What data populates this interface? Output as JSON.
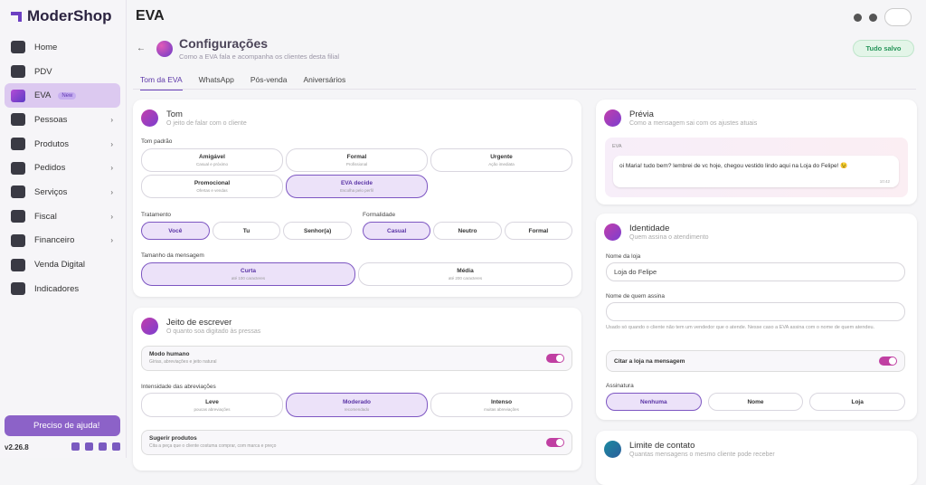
{
  "sidebar": {
    "logo": "ModerShop",
    "nav": [
      {
        "label": "Home"
      },
      {
        "label": "PDV"
      },
      {
        "label": "EVA",
        "badge": "New",
        "active": true
      },
      {
        "label": "Pessoas",
        "expandable": true
      },
      {
        "label": "Produtos",
        "expandable": true
      },
      {
        "label": "Pedidos",
        "expandable": true
      },
      {
        "label": "Serviços",
        "expandable": true
      },
      {
        "label": "Fiscal",
        "expandable": true
      },
      {
        "label": "Financeiro",
        "expandable": true
      },
      {
        "label": "Venda Digital"
      },
      {
        "label": "Indicadores"
      }
    ],
    "help": "Preciso de ajuda!",
    "version": "v2.26.8"
  },
  "topbar": {
    "title": "EVA"
  },
  "header": {
    "title": "Configurações",
    "subtitle": "Como a EVA fala e acompanha os clientes desta filial",
    "status": "Tudo salvo"
  },
  "tabs": [
    {
      "label": "Tom da EVA",
      "active": true
    },
    {
      "label": "WhatsApp"
    },
    {
      "label": "Pós-venda"
    },
    {
      "label": "Aniversários"
    }
  ],
  "tom": {
    "title": "Tom",
    "subtitle": "O jeito de falar com o cliente",
    "tone_label": "Tom padrão",
    "tones": [
      {
        "label": "Amigável",
        "hint": "Casual e próximo"
      },
      {
        "label": "Formal",
        "hint": "Profissional"
      },
      {
        "label": "Urgente",
        "hint": "Ação imediata"
      },
      {
        "label": "Promocional",
        "hint": "Ofertas e vendas"
      },
      {
        "label": "EVA decide",
        "hint": "Escolha pelo perfil",
        "selected": true
      }
    ],
    "treatment_label": "Tratamento",
    "treatments": [
      {
        "label": "Você",
        "selected": true
      },
      {
        "label": "Tu"
      },
      {
        "label": "Senhor(a)"
      }
    ],
    "formality_label": "Formalidade",
    "formalities": [
      {
        "label": "Casual",
        "selected": true
      },
      {
        "label": "Neutro"
      },
      {
        "label": "Formal"
      }
    ],
    "size_label": "Tamanho da mensagem",
    "sizes": [
      {
        "label": "Curta",
        "hint": "até 100 caracteres",
        "selected": true
      },
      {
        "label": "Média",
        "hint": "até 200 caracteres"
      }
    ]
  },
  "writing": {
    "title": "Jeito de escrever",
    "subtitle": "O quanto soa digitado às pressas",
    "human_mode": {
      "label": "Modo humano",
      "hint": "Gírias, abreviações e jeito natural",
      "on": true
    },
    "intensity_label": "Intensidade das abreviações",
    "intensities": [
      {
        "label": "Leve",
        "hint": "poucas abreviações"
      },
      {
        "label": "Moderado",
        "hint": "recomendado",
        "selected": true
      },
      {
        "label": "Intenso",
        "hint": "muitas abreviações"
      }
    ],
    "suggest": {
      "label": "Sugerir produtos",
      "hint": "Cita a peça que o cliente costuma comprar, com marca e preço",
      "on": true
    }
  },
  "preview": {
    "title": "Prévia",
    "subtitle": "Como a mensagem sai com os ajustes atuais",
    "sender": "EVA",
    "message": "oi Maria! tudo bem? lembrei de vc hoje, chegou vestido lindo aqui na Loja do Felipe! 😉",
    "time": "10:42"
  },
  "identity": {
    "title": "Identidade",
    "subtitle": "Quem assina o atendimento",
    "store_label": "Nome da loja",
    "store_value": "Loja do Felipe",
    "signer_label": "Nome de quem assina",
    "signer_help": "Usado só quando o cliente não tem um vendedor que o atende. Nesse caso a EVA assina com o nome de quem atendeu.",
    "cite_store": {
      "label": "Citar a loja na mensagem",
      "on": true
    },
    "signature_label": "Assinatura",
    "signatures": [
      {
        "label": "Nenhuma",
        "selected": true
      },
      {
        "label": "Nome"
      },
      {
        "label": "Loja"
      }
    ]
  },
  "limit": {
    "title": "Limite de contato",
    "subtitle": "Quantas mensagens o mesmo cliente pode receber"
  }
}
